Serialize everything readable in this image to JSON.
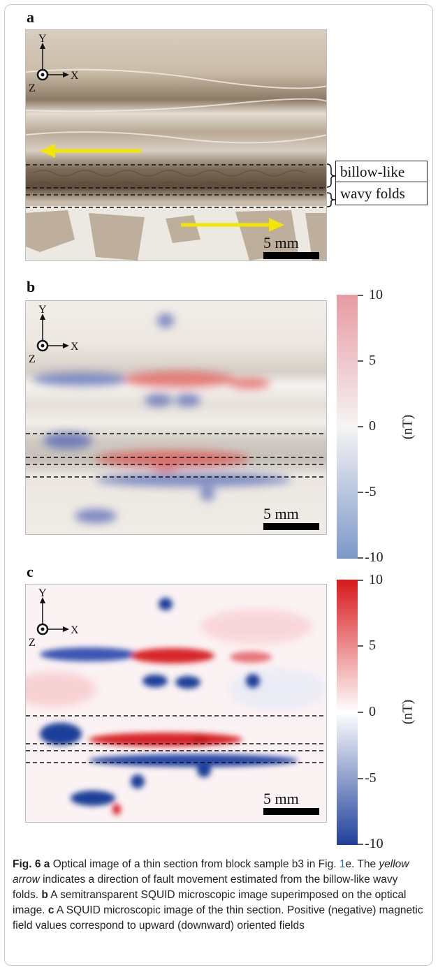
{
  "panels": {
    "a": {
      "letter": "a",
      "scale_bar": "5 mm"
    },
    "b": {
      "letter": "b",
      "scale_bar": "5 mm"
    },
    "c": {
      "letter": "c",
      "scale_bar": "5 mm"
    }
  },
  "axes": {
    "y": "Y",
    "x": "X",
    "z": "Z"
  },
  "callout": {
    "line1": "billow-like",
    "line2": "wavy folds"
  },
  "colorbar_b": {
    "ticks": [
      "10",
      "5",
      "0",
      "-5",
      "-10"
    ],
    "unit": "(nT)",
    "min_color": "#7b98c9",
    "max_color": "#e79aa2"
  },
  "colorbar_c": {
    "ticks": [
      "10",
      "5",
      "0",
      "-5",
      "-10"
    ],
    "unit": "(nT)",
    "min_color": "#1f3f99",
    "max_color": "#d7191c"
  },
  "arrow_color": "#f3e600",
  "caption": {
    "fig_label": "Fig. 6",
    "a_label": "a",
    "a_text_1": " Optical image of a thin section from block sample b3 in Fig. ",
    "fig_ref_num": "1",
    "a_text_2": "e. The ",
    "yellow_arrow": "yellow arrow",
    "a_text_3": " indicates a direction of fault movement estimated from the billow-like wavy folds. ",
    "b_label": "b",
    "b_text": " A semitransparent SQUID microscopic image superimposed on the optical image. ",
    "c_label": "c",
    "c_text": " A SQUID microscopic image of the thin section. Positive (negative) magnetic field values correspond to upward (downward) oriented fields"
  }
}
